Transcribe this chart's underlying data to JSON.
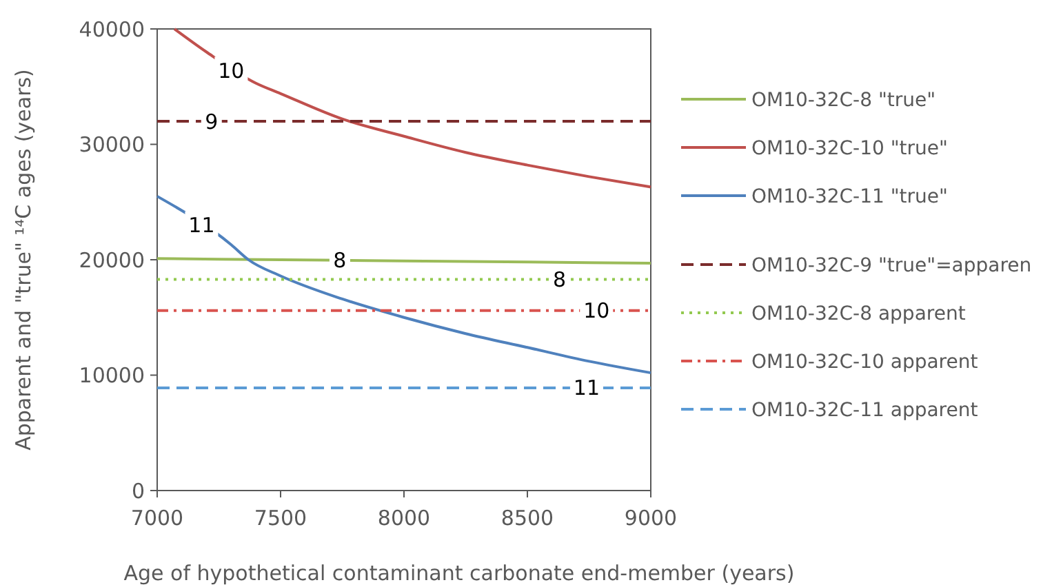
{
  "chart_data": {
    "type": "line",
    "xlabel": "Age of hypothetical contaminant carbonate end-member (years)",
    "ylabel": "Apparent and \"true\" ¹⁴C ages (years)",
    "xlim": [
      7000,
      9000
    ],
    "ylim": [
      0,
      40000
    ],
    "xticks": [
      7000,
      7500,
      8000,
      8500,
      9000
    ],
    "yticks": [
      0,
      10000,
      20000,
      30000,
      40000
    ],
    "grid": false,
    "legend": "right",
    "marker": "none",
    "series": [
      {
        "name": "OM10-32C-8 \"true\"",
        "color": "#9bbb59",
        "line_style": "solid",
        "x": [
          7000,
          7500,
          8000,
          8500,
          9000
        ],
        "values": [
          20100,
          20000,
          19900,
          19800,
          19700
        ]
      },
      {
        "name": "OM10-32C-10 \"true\"",
        "color": "#c0504d",
        "line_style": "solid",
        "x": [
          7070,
          7200,
          7400,
          7500,
          7750,
          8000,
          8250,
          8500,
          8750,
          9000
        ],
        "values": [
          40000,
          38000,
          35300,
          34400,
          32200,
          30700,
          29300,
          28200,
          27200,
          26300
        ]
      },
      {
        "name": "OM10-32C-11 \"true\"",
        "color": "#4f81bd",
        "line_style": "solid",
        "x": [
          7000,
          7300,
          7370,
          7500,
          7750,
          8000,
          8250,
          8500,
          8750,
          9000
        ],
        "values": [
          25500,
          21300,
          20000,
          18600,
          16600,
          15000,
          13600,
          12400,
          11200,
          10200
        ]
      },
      {
        "name": "OM10-32C-9 \"true\"=apparen",
        "color": "#7b2c2c",
        "line_style": "dashed",
        "x": [
          7000,
          9000
        ],
        "values": [
          32000,
          32000
        ]
      },
      {
        "name": "OM10-32C-8 apparent",
        "color": "#92c94f",
        "line_style": "dotted",
        "x": [
          7000,
          9000
        ],
        "values": [
          18300,
          18300
        ]
      },
      {
        "name": "OM10-32C-10 apparent",
        "color": "#d9534f",
        "line_style": "dashdot",
        "x": [
          7000,
          9000
        ],
        "values": [
          15600,
          15600
        ]
      },
      {
        "name": "OM10-32C-11 apparent",
        "color": "#5b9bd5",
        "line_style": "dashed",
        "x": [
          7000,
          9000
        ],
        "values": [
          8900,
          8900
        ]
      }
    ],
    "annotations": [
      {
        "text": "10",
        "x": 7300,
        "y": 36400
      },
      {
        "text": "9",
        "x": 7220,
        "y": 32000
      },
      {
        "text": "11",
        "x": 7180,
        "y": 23000
      },
      {
        "text": "8",
        "x": 7740,
        "y": 20000
      },
      {
        "text": "8",
        "x": 8630,
        "y": 18300
      },
      {
        "text": "10",
        "x": 8780,
        "y": 15600
      },
      {
        "text": "11",
        "x": 8740,
        "y": 8900
      }
    ]
  }
}
